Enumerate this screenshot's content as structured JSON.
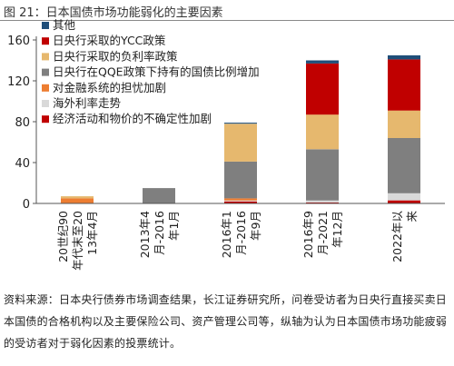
{
  "figure": {
    "title": "图 21：日本国债市场功能弱化的主要因素",
    "source": "资料来源：日本央行债券市场调查结果，长江证券研究所，问卷受访者为日央行直接买卖日本国债的合格机构以及主要保险公司、资产管理公司等，纵轴为认为日本国债市场功能疲弱的受访者对于弱化因素的投票统计。"
  },
  "chart_data": {
    "type": "bar",
    "stacked": true,
    "categories": [
      "20世纪90年代末至2013年4月",
      "2013年4月-2016年1月",
      "2016年1月-2016年9月",
      "2016年9月-2021年12月",
      "2022年以来"
    ],
    "ylim": [
      0,
      160
    ],
    "yticks": [
      0,
      40,
      80,
      120,
      160
    ],
    "grid": false,
    "legend_position": "top-left",
    "series": [
      {
        "name": "经济活动和物价的不确定性加剧",
        "color": "#C00000",
        "values": [
          0,
          0,
          2,
          1,
          3
        ]
      },
      {
        "name": "海外利率走势",
        "color": "#D9D9D9",
        "values": [
          0,
          0,
          1,
          2,
          7
        ]
      },
      {
        "name": "对金融系统的担忧加剧",
        "color": "#ED7D31",
        "values": [
          5,
          0,
          2,
          0,
          0
        ]
      },
      {
        "name": "日央行在QQE政策下持有的国债比例增加",
        "color": "#7F7F7F",
        "values": [
          0,
          15,
          36,
          50,
          54
        ]
      },
      {
        "name": "日央行采取的负利率政策",
        "color": "#E6B86E",
        "values": [
          2,
          0,
          37,
          34,
          27
        ]
      },
      {
        "name": "日央行采取的YCC政策",
        "color": "#C00000",
        "values": [
          0,
          0,
          0,
          50,
          50
        ]
      },
      {
        "name": "其他",
        "color": "#1F4E79",
        "values": [
          0,
          0,
          1,
          3,
          4
        ]
      }
    ]
  }
}
